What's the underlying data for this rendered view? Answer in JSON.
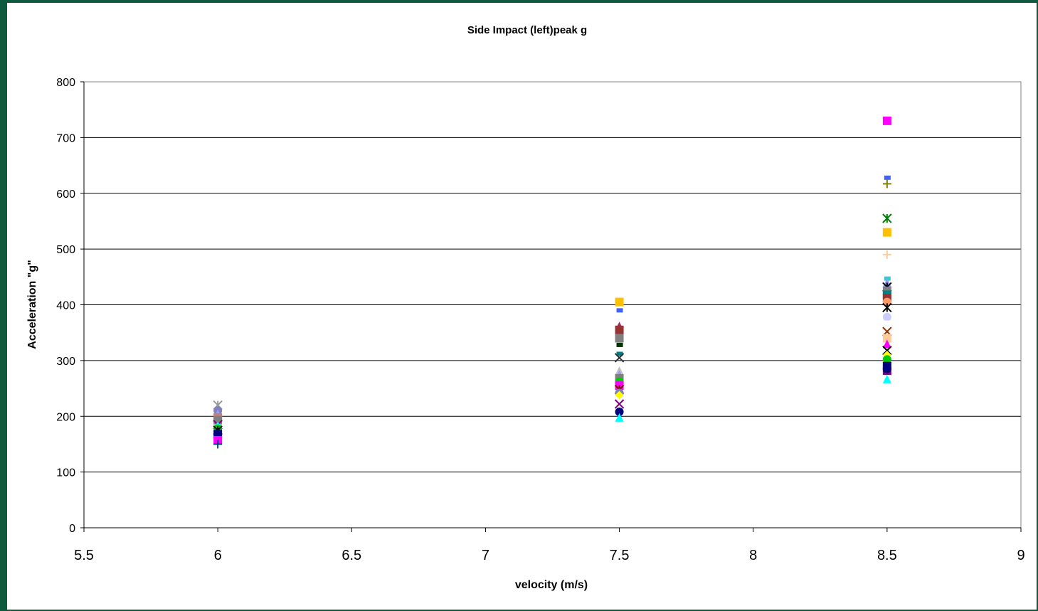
{
  "chart_data": {
    "type": "scatter",
    "title": "Side Impact (left)peak g",
    "xlabel": "velocity (m/s)",
    "ylabel": "Acceleration \"g\"",
    "xlim": [
      5.5,
      9
    ],
    "ylim": [
      0,
      800
    ],
    "x_ticks": [
      "5.5",
      "6",
      "6.5",
      "7",
      "7.5",
      "8",
      "8.5",
      "9"
    ],
    "y_ticks": [
      "0",
      "100",
      "200",
      "300",
      "400",
      "500",
      "600",
      "700",
      "800"
    ],
    "grid": "horizontal",
    "legend": "none",
    "points": [
      {
        "x": 6,
        "y": 220,
        "marker": "star",
        "color": "#999999"
      },
      {
        "x": 6,
        "y": 210,
        "marker": "circle",
        "color": "#8080c0"
      },
      {
        "x": 6,
        "y": 205,
        "marker": "triangle",
        "color": "#9999ff"
      },
      {
        "x": 6,
        "y": 198,
        "marker": "square",
        "color": "#c08080"
      },
      {
        "x": 6,
        "y": 193,
        "marker": "square",
        "color": "#808080"
      },
      {
        "x": 6,
        "y": 185,
        "marker": "x",
        "color": "#800080"
      },
      {
        "x": 6,
        "y": 182,
        "marker": "diamond",
        "color": "#00ffff"
      },
      {
        "x": 6,
        "y": 178,
        "marker": "circle",
        "color": "#00cc00"
      },
      {
        "x": 6,
        "y": 175,
        "marker": "star",
        "color": "#000000"
      },
      {
        "x": 6,
        "y": 168,
        "marker": "square",
        "color": "#000080"
      },
      {
        "x": 6,
        "y": 160,
        "marker": "dash",
        "color": "#000000"
      },
      {
        "x": 6,
        "y": 157,
        "marker": "square",
        "color": "#ff00ff"
      },
      {
        "x": 6,
        "y": 150,
        "marker": "plus",
        "color": "#004080"
      },
      {
        "x": 7.5,
        "y": 405,
        "marker": "square",
        "color": "#ffc000"
      },
      {
        "x": 7.5,
        "y": 390,
        "marker": "dash",
        "color": "#4060ff"
      },
      {
        "x": 7.5,
        "y": 362,
        "marker": "triangle",
        "color": "#993366"
      },
      {
        "x": 7.5,
        "y": 355,
        "marker": "square",
        "color": "#993333"
      },
      {
        "x": 7.5,
        "y": 340,
        "marker": "square",
        "color": "#808080"
      },
      {
        "x": 7.5,
        "y": 328,
        "marker": "dash",
        "color": "#003300"
      },
      {
        "x": 7.5,
        "y": 312,
        "marker": "dash",
        "color": "#008080"
      },
      {
        "x": 7.5,
        "y": 305,
        "marker": "x",
        "color": "#333333"
      },
      {
        "x": 7.5,
        "y": 282,
        "marker": "triangle",
        "color": "#c0c0c0"
      },
      {
        "x": 7.5,
        "y": 275,
        "marker": "triangle",
        "color": "#9999ff"
      },
      {
        "x": 7.5,
        "y": 268,
        "marker": "square",
        "color": "#808080"
      },
      {
        "x": 7.5,
        "y": 262,
        "marker": "circle",
        "color": "#00cc00"
      },
      {
        "x": 7.5,
        "y": 255,
        "marker": "square",
        "color": "#ff00ff"
      },
      {
        "x": 7.5,
        "y": 248,
        "marker": "star",
        "color": "#800000"
      },
      {
        "x": 7.5,
        "y": 242,
        "marker": "circle",
        "color": "#8080c0"
      },
      {
        "x": 7.5,
        "y": 238,
        "marker": "diamond",
        "color": "#ffff00"
      },
      {
        "x": 7.5,
        "y": 222,
        "marker": "x",
        "color": "#800080"
      },
      {
        "x": 7.5,
        "y": 208,
        "marker": "circle",
        "color": "#000080"
      },
      {
        "x": 7.5,
        "y": 198,
        "marker": "triangle",
        "color": "#00ffff"
      },
      {
        "x": 8.5,
        "y": 730,
        "marker": "square",
        "color": "#ff00ff"
      },
      {
        "x": 8.5,
        "y": 628,
        "marker": "dash",
        "color": "#4060ff"
      },
      {
        "x": 8.5,
        "y": 617,
        "marker": "plus",
        "color": "#808000"
      },
      {
        "x": 8.5,
        "y": 555,
        "marker": "star",
        "color": "#008000"
      },
      {
        "x": 8.5,
        "y": 530,
        "marker": "square",
        "color": "#ffc000"
      },
      {
        "x": 8.5,
        "y": 490,
        "marker": "plus",
        "color": "#ffcc99"
      },
      {
        "x": 8.5,
        "y": 447,
        "marker": "dash",
        "color": "#33cccc"
      },
      {
        "x": 8.5,
        "y": 440,
        "marker": "triangle",
        "color": "#9999ff"
      },
      {
        "x": 8.5,
        "y": 432,
        "marker": "star",
        "color": "#000000"
      },
      {
        "x": 8.5,
        "y": 425,
        "marker": "square",
        "color": "#808080"
      },
      {
        "x": 8.5,
        "y": 418,
        "marker": "square",
        "color": "#008080"
      },
      {
        "x": 8.5,
        "y": 412,
        "marker": "square",
        "color": "#993333"
      },
      {
        "x": 8.5,
        "y": 405,
        "marker": "circle",
        "color": "#ff9966"
      },
      {
        "x": 8.5,
        "y": 395,
        "marker": "star",
        "color": "#000000"
      },
      {
        "x": 8.5,
        "y": 378,
        "marker": "circle",
        "color": "#ccccff"
      },
      {
        "x": 8.5,
        "y": 368,
        "marker": "dash",
        "color": "#ffffff"
      },
      {
        "x": 8.5,
        "y": 352,
        "marker": "x",
        "color": "#993300"
      },
      {
        "x": 8.5,
        "y": 340,
        "marker": "square",
        "color": "#ffcc99"
      },
      {
        "x": 8.5,
        "y": 330,
        "marker": "triangle",
        "color": "#ff00ff"
      },
      {
        "x": 8.5,
        "y": 318,
        "marker": "x",
        "color": "#000000"
      },
      {
        "x": 8.5,
        "y": 310,
        "marker": "diamond",
        "color": "#ffff00"
      },
      {
        "x": 8.5,
        "y": 302,
        "marker": "circle",
        "color": "#00cc00"
      },
      {
        "x": 8.5,
        "y": 290,
        "marker": "square",
        "color": "#000080"
      },
      {
        "x": 8.5,
        "y": 282,
        "marker": "square",
        "color": "#800080"
      },
      {
        "x": 8.5,
        "y": 285,
        "marker": "circle",
        "color": "#000080"
      },
      {
        "x": 8.5,
        "y": 267,
        "marker": "triangle",
        "color": "#00ffff"
      }
    ]
  }
}
